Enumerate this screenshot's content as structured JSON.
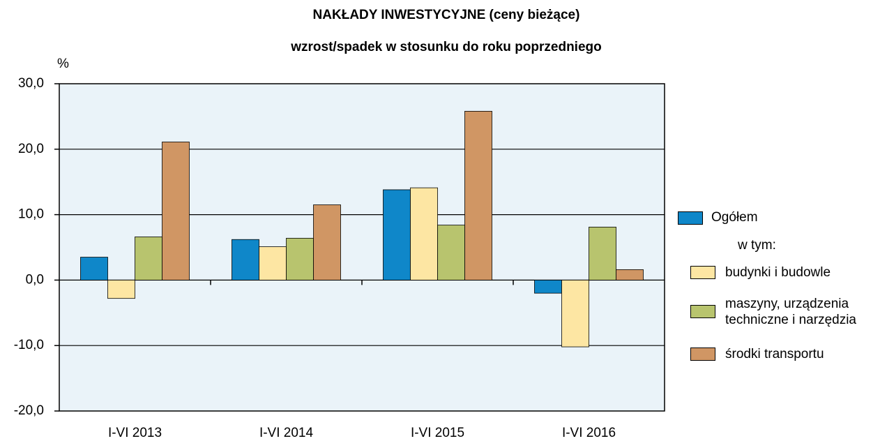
{
  "chart_data": {
    "type": "bar",
    "title": "NAKŁADY  INWESTYCYJNE  (ceny bieżące)",
    "subtitle": "wzrost/spadek w stosunku do roku poprzedniego",
    "y_label": "%",
    "legend_subtitle": "w tym:",
    "categories": [
      "I-VI 2013",
      "I-VI 2014",
      "I-VI 2015",
      "I-VI 2016"
    ],
    "series": [
      {
        "name": "Ogółem",
        "color": "#0f87c9",
        "values": [
          3.5,
          6.2,
          13.8,
          -2.0
        ]
      },
      {
        "name": "budynki i budowle",
        "color": "#fde6a3",
        "values": [
          -2.8,
          5.1,
          14.1,
          -10.2
        ]
      },
      {
        "name": "maszyny, urządzenia techniczne i narzędzia",
        "color": "#b8c46e",
        "values": [
          6.6,
          6.4,
          8.4,
          8.1
        ]
      },
      {
        "name": "środki transportu",
        "color": "#d09664",
        "values": [
          21.1,
          11.5,
          25.8,
          1.6
        ]
      }
    ],
    "ylim": [
      -20,
      30
    ],
    "yticks": [
      {
        "value": -20,
        "label": "-20,0"
      },
      {
        "value": -10,
        "label": "-10,0"
      },
      {
        "value": 0,
        "label": "0,0"
      },
      {
        "value": 10,
        "label": "10,0"
      },
      {
        "value": 20,
        "label": "20,0"
      },
      {
        "value": 30,
        "label": "30,0"
      }
    ],
    "grid": true,
    "legend": "right"
  }
}
